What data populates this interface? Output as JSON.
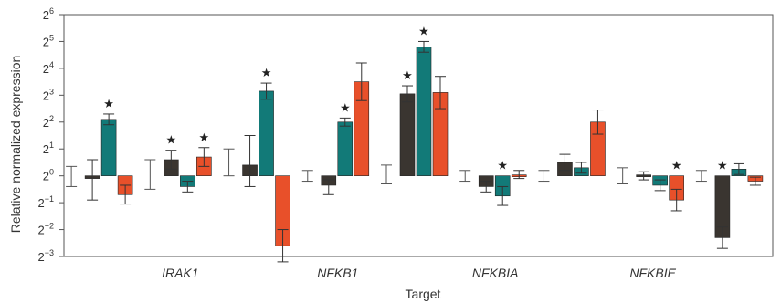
{
  "chart_data": {
    "type": "bar",
    "title": "",
    "xlabel": "Target",
    "ylabel": "Relative normalized expression",
    "y_scale": "log2",
    "ylim_exponent": [
      -3,
      6
    ],
    "y_ticks": [
      {
        "exp": 6,
        "label": "6"
      },
      {
        "exp": 5,
        "label": "5"
      },
      {
        "exp": 4,
        "label": "4"
      },
      {
        "exp": 3,
        "label": "3"
      },
      {
        "exp": 2,
        "label": "2"
      },
      {
        "exp": 1,
        "label": "1"
      },
      {
        "exp": 0,
        "label": "0"
      },
      {
        "exp": -1,
        "label": "-1"
      },
      {
        "exp": -2,
        "label": "-2"
      },
      {
        "exp": -3,
        "label": "-3"
      }
    ],
    "y_tick_base": "2",
    "categories": [
      "IRAK1",
      "NFKB1",
      "NFKBIA",
      "NFKBIE"
    ],
    "category_anchor_group": [
      1,
      3,
      5,
      7
    ],
    "grid": false,
    "legend": "none",
    "colors": [
      "#3a3530",
      "#127a78",
      "#e8502a"
    ],
    "significance_marker": "★",
    "groups": [
      {
        "bars": [
          {
            "log2": -0.1,
            "err": 0.7,
            "lo": 0.8,
            "sig": false
          },
          {
            "log2": 2.1,
            "err": 0.2,
            "lo": 0.2,
            "sig": true
          },
          {
            "log2": -0.7,
            "err": 0.35,
            "lo": 0.35,
            "sig": false
          }
        ],
        "whiskers": [
          {
            "top": 0.35,
            "bottom": -0.4
          }
        ]
      },
      {
        "bars": [
          {
            "log2": 0.6,
            "err": 0.35,
            "lo": 0.35,
            "sig": true
          },
          {
            "log2": -0.4,
            "err": 0.2,
            "lo": 0.2,
            "sig": false
          },
          {
            "log2": 0.7,
            "err": 0.35,
            "lo": 0.35,
            "sig": true
          }
        ],
        "whiskers": [
          {
            "top": 0.6,
            "bottom": -0.5
          }
        ]
      },
      {
        "bars": [
          {
            "log2": 0.4,
            "err": 1.1,
            "lo": 0.8,
            "sig": false
          },
          {
            "log2": 3.15,
            "err": 0.3,
            "lo": 0.3,
            "sig": true
          },
          {
            "log2": -2.6,
            "err": 0.6,
            "lo": 0.6,
            "sig": false
          }
        ],
        "whiskers": [
          {
            "top": 1.0,
            "bottom": 0.0
          }
        ]
      },
      {
        "bars": [
          {
            "log2": -0.35,
            "err": 0.2,
            "lo": 0.35,
            "sig": false
          },
          {
            "log2": 2.0,
            "err": 0.15,
            "lo": 0.15,
            "sig": true
          },
          {
            "log2": 3.5,
            "err": 0.7,
            "lo": 0.7,
            "sig": false
          }
        ],
        "whiskers": [
          {
            "top": 0.2,
            "bottom": -0.2
          }
        ]
      },
      {
        "bars": [
          {
            "log2": 3.05,
            "err": 0.3,
            "lo": 0.3,
            "sig": true
          },
          {
            "log2": 4.8,
            "err": 0.2,
            "lo": 0.2,
            "sig": true
          },
          {
            "log2": 3.1,
            "err": 0.6,
            "lo": 0.6,
            "sig": false
          }
        ],
        "whiskers": [
          {
            "top": 0.4,
            "bottom": -0.3
          }
        ]
      },
      {
        "bars": [
          {
            "log2": -0.4,
            "err": 0.2,
            "lo": 0.2,
            "sig": false
          },
          {
            "log2": -0.75,
            "err": 0.35,
            "lo": 0.35,
            "sig": true
          },
          {
            "log2": 0.05,
            "err": 0.15,
            "lo": 0.15,
            "sig": false
          }
        ],
        "whiskers": [
          {
            "top": 0.2,
            "bottom": -0.2
          }
        ]
      },
      {
        "bars": [
          {
            "log2": 0.5,
            "err": 0.3,
            "lo": 0.3,
            "sig": false
          },
          {
            "log2": 0.3,
            "err": 0.2,
            "lo": 0.2,
            "sig": false
          },
          {
            "log2": 2.0,
            "err": 0.45,
            "lo": 0.45,
            "sig": false
          }
        ],
        "whiskers": [
          {
            "top": 0.2,
            "bottom": -0.2
          }
        ]
      },
      {
        "bars": [
          {
            "log2": 0.0,
            "err": 0.15,
            "lo": 0.15,
            "sig": false
          },
          {
            "log2": -0.35,
            "err": 0.2,
            "lo": 0.2,
            "sig": false
          },
          {
            "log2": -0.9,
            "err": 0.4,
            "lo": 0.4,
            "sig": true
          }
        ],
        "whiskers": [
          {
            "top": 0.3,
            "bottom": -0.3
          }
        ]
      },
      {
        "bars": [
          {
            "log2": -2.3,
            "err": 0.4,
            "lo": 0.4,
            "sig": true
          },
          {
            "log2": 0.25,
            "err": 0.2,
            "lo": 0.2,
            "sig": false
          },
          {
            "log2": -0.2,
            "err": 0.15,
            "lo": 0.15,
            "sig": false
          }
        ],
        "whiskers": [
          {
            "top": 0.2,
            "bottom": -0.2
          }
        ]
      }
    ]
  }
}
